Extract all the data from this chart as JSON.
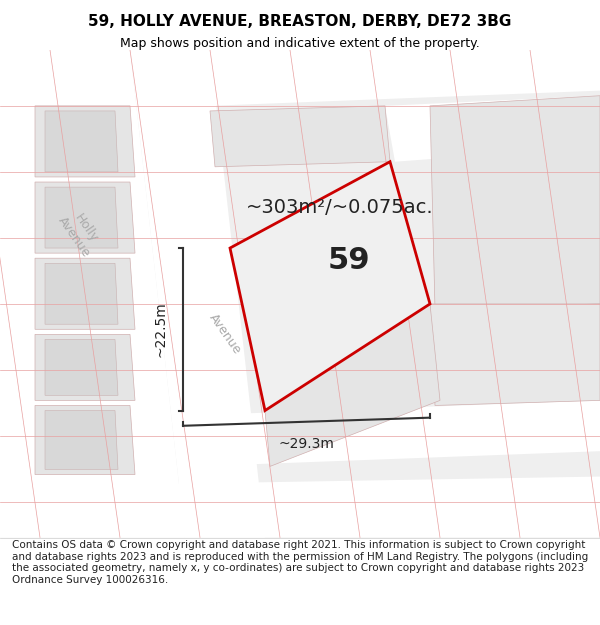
{
  "title": "59, HOLLY AVENUE, BREASTON, DERBY, DE72 3BG",
  "subtitle": "Map shows position and indicative extent of the property.",
  "footer": "Contains OS data © Crown copyright and database right 2021. This information is subject to Crown copyright and database rights 2023 and is reproduced with the permission of HM Land Registry. The polygons (including the associated geometry, namely x, y co-ordinates) are subject to Crown copyright and database rights 2023 Ordnance Survey 100026316.",
  "area_label": "~303m²/~0.075ac.",
  "plot_number": "59",
  "dim_height": "~22.5m",
  "dim_width": "~29.3m",
  "street_label": "Avenue",
  "street_label2": "Holly Avenue",
  "map_bg": "#f5f5f5",
  "plot_fill": "#f0f0f0",
  "plot_edge": "#cc0000",
  "road_color": "#ffffff",
  "grid_line_color": "#e8b8b8",
  "block_color": "#e0e0e0",
  "dim_line_color": "#333333",
  "title_fontsize": 11,
  "subtitle_fontsize": 9,
  "footer_fontsize": 7.5,
  "area_label_fontsize": 14,
  "plot_number_fontsize": 22,
  "dim_fontsize": 10,
  "street_fontsize": 9
}
